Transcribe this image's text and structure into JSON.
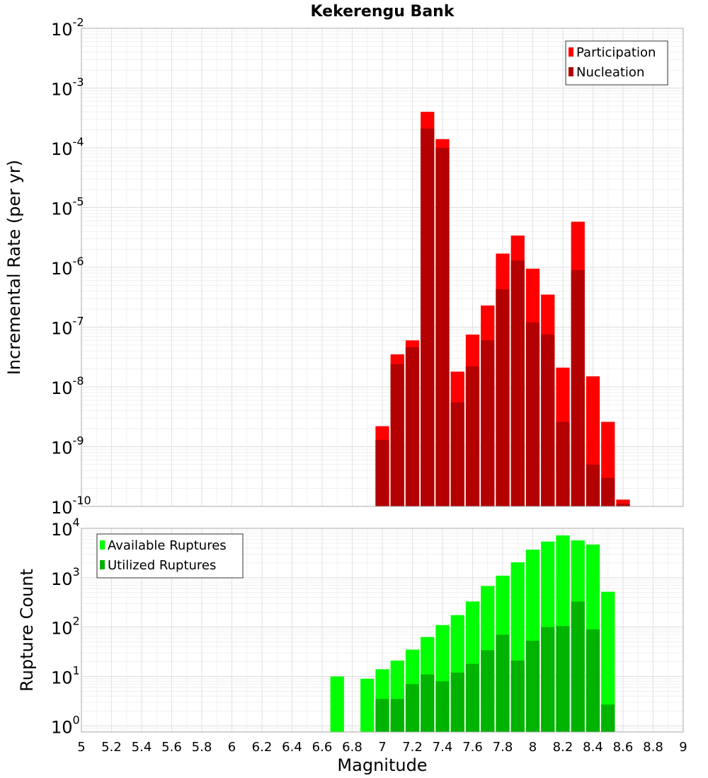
{
  "chart_data": [
    {
      "type": "bar",
      "title": "Kekerengu Bank",
      "xlabel": "Magnitude",
      "ylabel": "Incremental Rate (per yr)",
      "yscale": "log",
      "ylim": [
        1e-10,
        0.01
      ],
      "xlim": [
        5,
        9
      ],
      "bin_width": 0.1,
      "grid": true,
      "legend": "top-right",
      "x": [
        7.0,
        7.1,
        7.2,
        7.3,
        7.4,
        7.5,
        7.6,
        7.7,
        7.8,
        7.9,
        8.0,
        8.1,
        8.2,
        8.3,
        8.4,
        8.5,
        8.6
      ],
      "series": [
        {
          "name": "Participation",
          "color": "#ff0000",
          "values": [
            2.2e-09,
            3.5e-08,
            6e-08,
            0.0004,
            0.00014,
            1.8e-08,
            7.5e-08,
            2.3e-07,
            1.7e-06,
            3.4e-06,
            9.5e-07,
            3.5e-07,
            2.1e-08,
            5.8e-06,
            1.5e-08,
            2.6e-09,
            1.3e-10
          ]
        },
        {
          "name": "Nucleation",
          "color": "#b30000",
          "values": [
            1.3e-09,
            2.4e-08,
            4.6e-08,
            0.00021,
            0.0001,
            5.5e-09,
            2.2e-08,
            6e-08,
            4.3e-07,
            1.3e-06,
            1.2e-07,
            7.5e-08,
            2.6e-09,
            9e-07,
            5e-10,
            3e-10,
            1.1e-10
          ]
        }
      ]
    },
    {
      "type": "bar",
      "xlabel": "Magnitude",
      "ylabel": "Rupture Count",
      "yscale": "log",
      "ylim": [
        0.75,
        10000
      ],
      "xlim": [
        5,
        9
      ],
      "bin_width": 0.1,
      "grid": true,
      "legend": "top-left",
      "x_ticks": [
        "5",
        "5.2",
        "5.4",
        "5.6",
        "5.8",
        "6",
        "6.2",
        "6.4",
        "6.6",
        "6.8",
        "7",
        "7.2",
        "7.4",
        "7.6",
        "7.8",
        "8",
        "8.2",
        "8.4",
        "8.6",
        "8.8",
        "9"
      ],
      "series": [
        {
          "name": "Available Ruptures",
          "color": "#00ff00",
          "x": [
            6.7,
            6.9,
            7.0,
            7.1,
            7.2,
            7.3,
            7.4,
            7.5,
            7.6,
            7.7,
            7.8,
            7.9,
            8.0,
            8.1,
            8.2,
            8.3,
            8.4,
            8.5
          ],
          "values": [
            10,
            9,
            14,
            21,
            35,
            63,
            110,
            175,
            330,
            680,
            1100,
            2050,
            3700,
            5400,
            7200,
            5700,
            4700,
            520
          ]
        },
        {
          "name": "Utilized Ruptures",
          "color": "#00b300",
          "x": [
            7.0,
            7.1,
            7.2,
            7.3,
            7.4,
            7.5,
            7.6,
            7.7,
            7.8,
            7.9,
            8.0,
            8.1,
            8.2,
            8.3,
            8.4,
            8.5
          ],
          "values": [
            3.5,
            3.5,
            7,
            11,
            8,
            12,
            18,
            34,
            70,
            21,
            53,
            100,
            105,
            330,
            90,
            2.7
          ]
        }
      ]
    }
  ]
}
